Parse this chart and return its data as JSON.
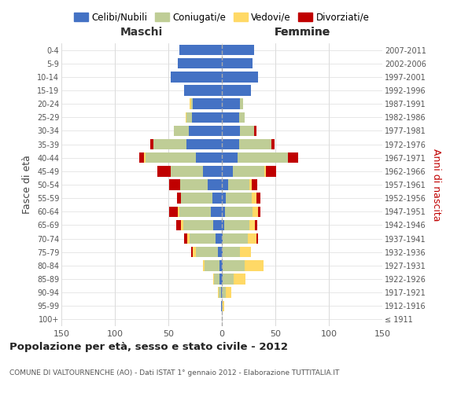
{
  "age_groups": [
    "100+",
    "95-99",
    "90-94",
    "85-89",
    "80-84",
    "75-79",
    "70-74",
    "65-69",
    "60-64",
    "55-59",
    "50-54",
    "45-49",
    "40-44",
    "35-39",
    "30-34",
    "25-29",
    "20-24",
    "15-19",
    "10-14",
    "5-9",
    "0-4"
  ],
  "birth_years": [
    "≤ 1911",
    "1912-1916",
    "1917-1921",
    "1922-1926",
    "1927-1931",
    "1932-1936",
    "1937-1941",
    "1942-1946",
    "1947-1951",
    "1952-1956",
    "1957-1961",
    "1962-1966",
    "1967-1971",
    "1972-1976",
    "1977-1981",
    "1982-1986",
    "1987-1991",
    "1992-1996",
    "1997-2001",
    "2002-2006",
    "2007-2011"
  ],
  "colors": {
    "celibi": "#4472C4",
    "coniugati": "#BFCD96",
    "vedovi": "#FFD966",
    "divorziati": "#C00000"
  },
  "maschi": {
    "celibi": [
      0,
      1,
      1,
      2,
      2,
      4,
      6,
      8,
      10,
      9,
      13,
      18,
      24,
      33,
      31,
      28,
      27,
      35,
      48,
      41,
      40
    ],
    "coniugati": [
      0,
      0,
      2,
      5,
      14,
      20,
      24,
      28,
      30,
      29,
      26,
      30,
      47,
      31,
      14,
      5,
      2,
      0,
      0,
      0,
      0
    ],
    "vedovi": [
      0,
      0,
      1,
      1,
      2,
      3,
      2,
      2,
      1,
      0,
      0,
      0,
      2,
      0,
      0,
      1,
      1,
      0,
      0,
      0,
      0
    ],
    "divorziati": [
      0,
      0,
      0,
      0,
      0,
      2,
      3,
      5,
      8,
      4,
      10,
      12,
      4,
      3,
      0,
      0,
      0,
      0,
      0,
      0,
      0
    ]
  },
  "femmine": {
    "celibi": [
      0,
      0,
      0,
      1,
      1,
      1,
      1,
      2,
      3,
      4,
      6,
      10,
      15,
      16,
      17,
      16,
      17,
      27,
      34,
      29,
      30
    ],
    "coniugati": [
      0,
      1,
      4,
      10,
      20,
      16,
      23,
      24,
      26,
      24,
      20,
      30,
      47,
      30,
      13,
      5,
      3,
      0,
      0,
      0,
      0
    ],
    "vedovi": [
      0,
      1,
      5,
      11,
      18,
      10,
      8,
      5,
      5,
      4,
      2,
      1,
      0,
      0,
      0,
      0,
      0,
      0,
      0,
      0,
      0
    ],
    "divorziati": [
      0,
      0,
      0,
      0,
      0,
      0,
      2,
      2,
      2,
      4,
      5,
      10,
      9,
      3,
      2,
      0,
      0,
      0,
      0,
      0,
      0
    ]
  },
  "xlim": 150,
  "title": "Popolazione per età, sesso e stato civile - 2012",
  "subtitle": "COMUNE DI VALTOURNENCHE (AO) - Dati ISTAT 1° gennaio 2012 - Elaborazione TUTTITALIA.IT",
  "ylabel_left": "Fasce di età",
  "ylabel_right": "Anni di nascita",
  "legend_labels": [
    "Celibi/Nubili",
    "Coniugati/e",
    "Vedovi/e",
    "Divorziati/e"
  ],
  "maschi_label": "Maschi",
  "femmine_label": "Femmine"
}
